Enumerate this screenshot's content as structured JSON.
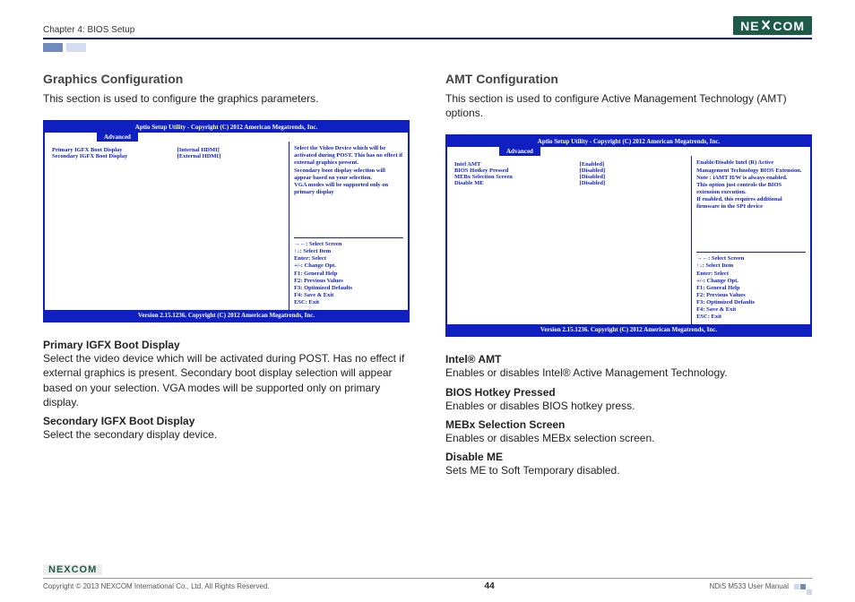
{
  "header": {
    "chapter": "Chapter 4: BIOS Setup",
    "logo_text": "NE COM",
    "logo_x": "X"
  },
  "left": {
    "title": "Graphics Configuration",
    "desc": "This section is used to configure the graphics parameters.",
    "bios": {
      "header": "Aptio Setup Utility - Copyright (C) 2012 American Megatrends, Inc.",
      "tab": "Advanced",
      "rows": [
        {
          "label": "Primary IGFX Boot Display",
          "value": "[Internal HDMI]"
        },
        {
          "label": "Secondary IGFX Boot Display",
          "value": "[External HDMI]"
        }
      ],
      "help_top": "Select the Video Device which will be activated during POST. This has no effect if external graphics present.\nSecondary boot display selection will appear based on your selection.\nVGA modes will be supported only on primary display",
      "help_bottom": "→←: Select Screen\n↑↓: Select Item\nEnter: Select\n+/-: Change Opt.\nF1: General Help\nF2: Previous Values\nF3: Optimized Defaults\nF4: Save & Exit\nESC: Exit",
      "footer": "Version 2.15.1236. Copyright (C) 2012 American Megatrends, Inc."
    },
    "options": [
      {
        "title": "Primary IGFX Boot Display",
        "desc": "Select the video device which will be activated during POST. Has no effect if external graphics is present. Secondary boot display selection will appear based on your selection. VGA modes will be supported only on primary display."
      },
      {
        "title": "Secondary IGFX Boot Display",
        "desc": "Select the secondary display device."
      }
    ]
  },
  "right": {
    "title": "AMT Configuration",
    "desc": "This section is used to configure Active Management Technology (AMT) options.",
    "bios": {
      "header": "Aptio Setup Utility - Copyright (C) 2012 American Megatrends, Inc.",
      "tab": "Advanced",
      "rows": [
        {
          "label": "Intel AMT",
          "value": "[Enabled]"
        },
        {
          "label": "BIOS Hotkey Pressed",
          "value": "[Disabled]"
        },
        {
          "label": "MEBx Selection Screen",
          "value": "[Disabled]"
        },
        {
          "label": "Disable ME",
          "value": "[Disabled]"
        }
      ],
      "help_top": "Enable/Disable Intel (R) Active Management Technology BIOS Extension.\nNote : iAMT H/W is always enabled.\nThis option just controls the BIOS extension execution.\nIf enabled, this requires additional firmware in the SPI device",
      "help_bottom": "→←: Select Screen\n↑↓: Select Item\nEnter: Select\n+/-: Change Opt.\nF1: General Help\nF2: Previous Values\nF3: Optimized Defaults\nF4: Save & Exit\nESC: Exit",
      "footer": "Version 2.15.1236. Copyright (C) 2012 American Megatrends, Inc."
    },
    "options": [
      {
        "title": "Intel® AMT",
        "desc": "Enables or disables Intel® Active Management Technology."
      },
      {
        "title": "BIOS Hotkey Pressed",
        "desc": "Enables or disables BIOS hotkey press."
      },
      {
        "title": "MEBx Selection Screen",
        "desc": "Enables or disables MEBx selection screen."
      },
      {
        "title": "Disable ME",
        "desc": "Sets ME to Soft Temporary disabled."
      }
    ]
  },
  "footer": {
    "copyright": "Copyright © 2013 NEXCOM International Co., Ltd. All Rights Reserved.",
    "page": "44",
    "manual": "NDiS M533 User Manual",
    "logo_small": "NEXCOM"
  }
}
